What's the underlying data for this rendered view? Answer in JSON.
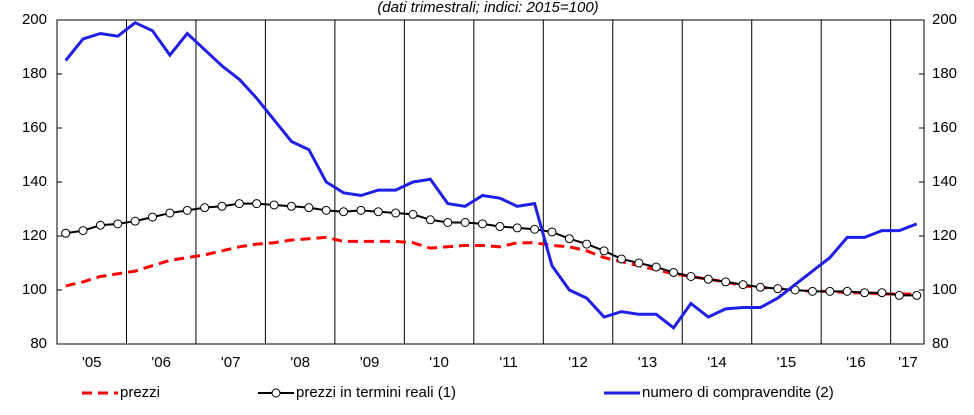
{
  "chart_data": {
    "type": "line",
    "title": "(dati trimestrali; indici: 2015=100)",
    "x": [
      2005.125,
      2005.375,
      2005.625,
      2005.875,
      2006.125,
      2006.375,
      2006.625,
      2006.875,
      2007.125,
      2007.375,
      2007.625,
      2007.875,
      2008.125,
      2008.375,
      2008.625,
      2008.875,
      2009.125,
      2009.375,
      2009.625,
      2009.875,
      2010.125,
      2010.375,
      2010.625,
      2010.875,
      2011.125,
      2011.375,
      2011.625,
      2011.875,
      2012.125,
      2012.375,
      2012.625,
      2012.875,
      2013.125,
      2013.375,
      2013.625,
      2013.875,
      2014.125,
      2014.375,
      2014.625,
      2014.875,
      2015.125,
      2015.375,
      2015.625,
      2015.875,
      2016.125,
      2016.375,
      2016.625,
      2016.875,
      2017.125,
      2017.375
    ],
    "xlim": [
      2005,
      2017.48
    ],
    "xticks": [
      {
        "value": 2005.5,
        "label": "'05"
      },
      {
        "value": 2006.5,
        "label": "'06"
      },
      {
        "value": 2007.5,
        "label": "'07"
      },
      {
        "value": 2008.5,
        "label": "'08"
      },
      {
        "value": 2009.5,
        "label": "'09"
      },
      {
        "value": 2010.5,
        "label": "'10"
      },
      {
        "value": 2011.5,
        "label": "'11"
      },
      {
        "value": 2012.5,
        "label": "'12"
      },
      {
        "value": 2013.5,
        "label": "'13"
      },
      {
        "value": 2014.5,
        "label": "'14"
      },
      {
        "value": 2015.5,
        "label": "'15"
      },
      {
        "value": 2016.5,
        "label": "'16"
      },
      {
        "value": 2017.25,
        "label": "'17"
      }
    ],
    "xgrid": [
      2006,
      2007,
      2008,
      2009,
      2010,
      2011,
      2012,
      2013,
      2014,
      2015,
      2016,
      2017
    ],
    "ylim": [
      80,
      200
    ],
    "yticks": [
      80,
      100,
      120,
      140,
      160,
      180,
      200
    ],
    "y2lim": [
      80,
      200
    ],
    "y2ticks": [
      80,
      100,
      120,
      140,
      160,
      180,
      200
    ],
    "legend": "bottom",
    "series": [
      {
        "name": "prezzi",
        "color": "#ff0000",
        "dash": true,
        "values": [
          101.5,
          103,
          105,
          106,
          107,
          109,
          111,
          112,
          113,
          114.5,
          116,
          117,
          117.5,
          118.5,
          119,
          119.5,
          118,
          118,
          118,
          118,
          117.5,
          115.5,
          116,
          116.5,
          116.5,
          116,
          117.5,
          117.5,
          116.5,
          116,
          114.5,
          112,
          110.5,
          109,
          107.5,
          106,
          105,
          104,
          103,
          101.5,
          101,
          100.5,
          100,
          99.5,
          99.5,
          99,
          99,
          98.5,
          98.5,
          98.5
        ]
      },
      {
        "name": "prezzi in termini reali (1)",
        "color": "#000000",
        "marker": "circle",
        "values": [
          121,
          122,
          124,
          124.5,
          125.5,
          127,
          128.5,
          129.5,
          130.5,
          131,
          132,
          132,
          131.5,
          131,
          130.5,
          129.5,
          129,
          129.5,
          129,
          128.5,
          128,
          126,
          125,
          125,
          124.5,
          123.5,
          123,
          122.5,
          121.5,
          119,
          117,
          114.5,
          111.5,
          110,
          108.5,
          106.5,
          105,
          104,
          103,
          102,
          101,
          100.5,
          100,
          99.5,
          99.5,
          99.5,
          99,
          99,
          98,
          98
        ]
      },
      {
        "name": "numero di compravendite (2)",
        "color": "#1f1fe6",
        "values": [
          185,
          193,
          195,
          194,
          199,
          196,
          187,
          195,
          189,
          183,
          178,
          171,
          163,
          155,
          152,
          140,
          136,
          135,
          137,
          137,
          140,
          141,
          132,
          131,
          135,
          134,
          131,
          132,
          109,
          100,
          97,
          90,
          92,
          91,
          91,
          86,
          95,
          90,
          93,
          93.5,
          93.5,
          97,
          102,
          107,
          112,
          119.5,
          119.5,
          122,
          122,
          124.5
        ]
      }
    ]
  }
}
